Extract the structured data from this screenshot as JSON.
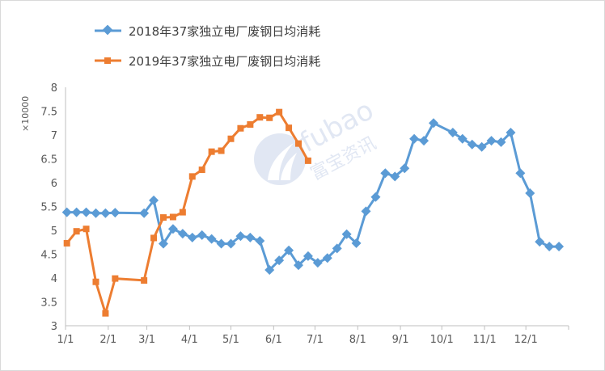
{
  "chart_data": {
    "type": "line",
    "title": "",
    "xlabel": "",
    "ylabel": "",
    "y_unit": "×10000",
    "ylim": [
      3,
      8
    ],
    "y_ticks": [
      3,
      3.5,
      4,
      4.5,
      5,
      5.5,
      6,
      6.5,
      7,
      7.5,
      8
    ],
    "y_tick_labels": [
      "3",
      "3.5",
      "4",
      "4.5",
      "5",
      "5.5",
      "6",
      "6.5",
      "7",
      "7.5",
      "8"
    ],
    "x_range_days": [
      0,
      365
    ],
    "x_ticks": [
      {
        "label": "1/1",
        "day": 0
      },
      {
        "label": "2/1",
        "day": 31
      },
      {
        "label": "3/1",
        "day": 59
      },
      {
        "label": "4/1",
        "day": 90
      },
      {
        "label": "5/1",
        "day": 120
      },
      {
        "label": "6/1",
        "day": 151
      },
      {
        "label": "7/1",
        "day": 181
      },
      {
        "label": "8/1",
        "day": 212
      },
      {
        "label": "9/1",
        "day": 243
      },
      {
        "label": "10/1",
        "day": 273
      },
      {
        "label": "11/1",
        "day": 304
      },
      {
        "label": "12/1",
        "day": 334
      }
    ],
    "grid": false,
    "legend_position": "top-left",
    "series": [
      {
        "name": "2018年37家独立电厂废钢日均消耗",
        "color": "#5b9bd5",
        "marker": "diamond",
        "points": [
          {
            "x": "1/2",
            "y": 5.38
          },
          {
            "x": "1/9",
            "y": 5.38
          },
          {
            "x": "1/16",
            "y": 5.38
          },
          {
            "x": "1/23",
            "y": 5.36
          },
          {
            "x": "1/30",
            "y": 5.36
          },
          {
            "x": "2/6",
            "y": 5.37
          },
          {
            "x": "2/27",
            "y": 5.36
          },
          {
            "x": "3/6",
            "y": 5.63
          },
          {
            "x": "3/13",
            "y": 4.72
          },
          {
            "x": "3/20",
            "y": 5.03
          },
          {
            "x": "3/27",
            "y": 4.93
          },
          {
            "x": "4/3",
            "y": 4.85
          },
          {
            "x": "4/10",
            "y": 4.9
          },
          {
            "x": "4/17",
            "y": 4.82
          },
          {
            "x": "4/24",
            "y": 4.72
          },
          {
            "x": "5/1",
            "y": 4.72
          },
          {
            "x": "5/8",
            "y": 4.88
          },
          {
            "x": "5/15",
            "y": 4.85
          },
          {
            "x": "5/22",
            "y": 4.78
          },
          {
            "x": "5/29",
            "y": 4.17
          },
          {
            "x": "6/5",
            "y": 4.37
          },
          {
            "x": "6/12",
            "y": 4.58
          },
          {
            "x": "6/19",
            "y": 4.27
          },
          {
            "x": "6/26",
            "y": 4.46
          },
          {
            "x": "7/3",
            "y": 4.32
          },
          {
            "x": "7/10",
            "y": 4.42
          },
          {
            "x": "7/17",
            "y": 4.62
          },
          {
            "x": "7/24",
            "y": 4.92
          },
          {
            "x": "7/31",
            "y": 4.73
          },
          {
            "x": "8/7",
            "y": 5.4
          },
          {
            "x": "8/14",
            "y": 5.7
          },
          {
            "x": "8/21",
            "y": 6.2
          },
          {
            "x": "8/28",
            "y": 6.13
          },
          {
            "x": "9/4",
            "y": 6.3
          },
          {
            "x": "9/11",
            "y": 6.92
          },
          {
            "x": "9/18",
            "y": 6.88
          },
          {
            "x": "9/25",
            "y": 7.25
          },
          {
            "x": "10/9",
            "y": 7.05
          },
          {
            "x": "10/16",
            "y": 6.92
          },
          {
            "x": "10/23",
            "y": 6.8
          },
          {
            "x": "10/30",
            "y": 6.75
          },
          {
            "x": "11/6",
            "y": 6.88
          },
          {
            "x": "11/13",
            "y": 6.85
          },
          {
            "x": "11/20",
            "y": 7.05
          },
          {
            "x": "11/27",
            "y": 6.2
          },
          {
            "x": "12/4",
            "y": 5.78
          },
          {
            "x": "12/11",
            "y": 4.76
          },
          {
            "x": "12/18",
            "y": 4.66
          },
          {
            "x": "12/25",
            "y": 4.66
          }
        ]
      },
      {
        "name": "2019年37家独立电厂废钢日均消耗",
        "color": "#ed7d31",
        "marker": "square",
        "points": [
          {
            "x": "1/2",
            "y": 4.73
          },
          {
            "x": "1/9",
            "y": 4.98
          },
          {
            "x": "1/16",
            "y": 5.03
          },
          {
            "x": "1/23",
            "y": 3.92
          },
          {
            "x": "1/30",
            "y": 3.26
          },
          {
            "x": "2/6",
            "y": 3.99
          },
          {
            "x": "2/27",
            "y": 3.95
          },
          {
            "x": "3/6",
            "y": 4.84
          },
          {
            "x": "3/13",
            "y": 5.27
          },
          {
            "x": "3/20",
            "y": 5.28
          },
          {
            "x": "3/27",
            "y": 5.38
          },
          {
            "x": "4/3",
            "y": 6.13
          },
          {
            "x": "4/10",
            "y": 6.27
          },
          {
            "x": "4/17",
            "y": 6.65
          },
          {
            "x": "4/24",
            "y": 6.67
          },
          {
            "x": "5/1",
            "y": 6.92
          },
          {
            "x": "5/8",
            "y": 7.14
          },
          {
            "x": "5/15",
            "y": 7.22
          },
          {
            "x": "5/22",
            "y": 7.37
          },
          {
            "x": "5/29",
            "y": 7.36
          },
          {
            "x": "6/5",
            "y": 7.48
          },
          {
            "x": "6/12",
            "y": 7.15
          },
          {
            "x": "6/19",
            "y": 6.82
          },
          {
            "x": "6/26",
            "y": 6.46
          }
        ]
      }
    ]
  },
  "watermark": {
    "brand": "fubao",
    "chinese": "富宝资讯"
  }
}
